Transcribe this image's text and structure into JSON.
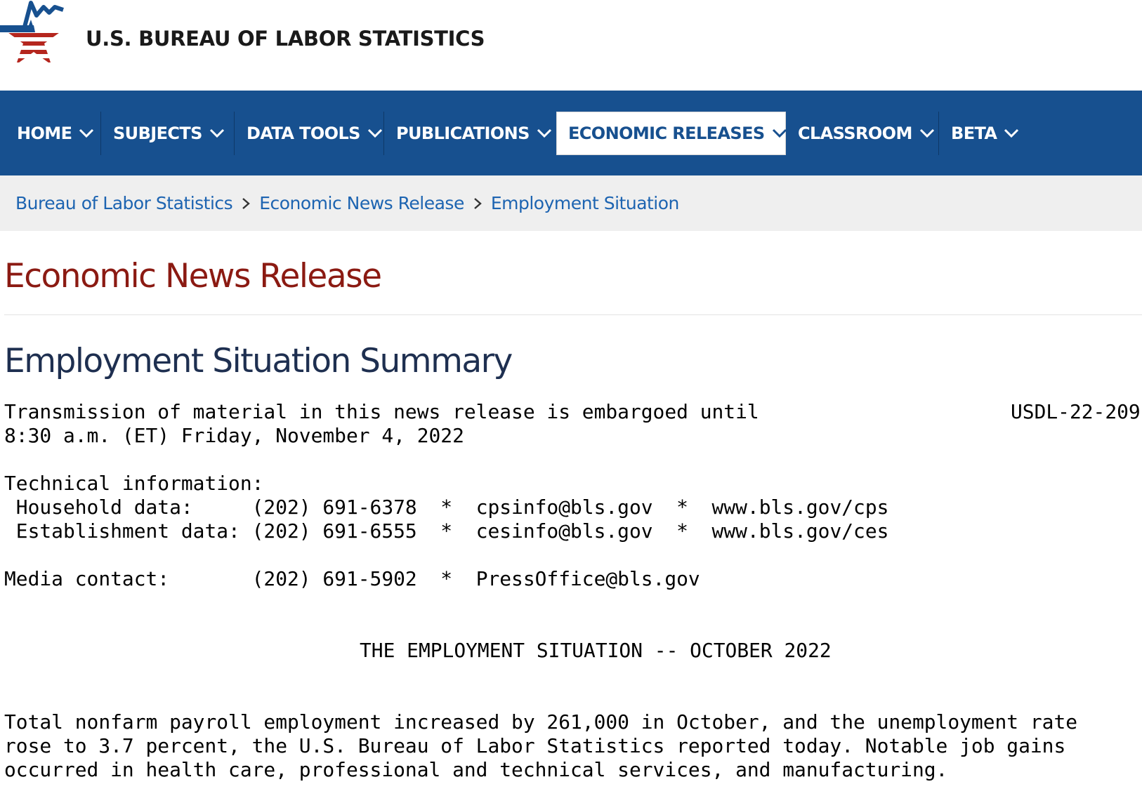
{
  "site": {
    "title": "U.S. BUREAU OF LABOR STATISTICS",
    "logo": "bls-star-logo",
    "colors": {
      "nav_bg": "#17508f",
      "logo_blue": "#17508f",
      "logo_red": "#b5261e",
      "page_title": "#8b1a12",
      "release_title": "#1e2f50",
      "link": "#1d64b1"
    }
  },
  "nav": {
    "items": [
      {
        "label": "HOME",
        "icon": "chevron-down-icon",
        "active": false
      },
      {
        "label": "SUBJECTS",
        "icon": "chevron-down-icon",
        "active": false
      },
      {
        "label": "DATA TOOLS",
        "icon": "chevron-down-icon",
        "active": false
      },
      {
        "label": "PUBLICATIONS",
        "icon": "chevron-down-icon",
        "active": false
      },
      {
        "label": "ECONOMIC RELEASES",
        "icon": "chevron-down-icon",
        "active": true
      },
      {
        "label": "CLASSROOM",
        "icon": "chevron-down-icon",
        "active": false
      },
      {
        "label": "BETA",
        "icon": "chevron-down-icon",
        "active": false
      }
    ]
  },
  "breadcrumb": {
    "items": [
      "Bureau of Labor Statistics",
      "Economic News Release",
      "Employment Situation"
    ],
    "separator_icon": "chevron-right-icon"
  },
  "page": {
    "title": "Economic News Release",
    "release_title": "Employment Situation Summary"
  },
  "release": {
    "embargo_line1": "Transmission of material in this news release is embargoed until",
    "release_id": "USDL-22-209",
    "embargo_line2": "8:30 a.m. (ET) Friday, November 4, 2022",
    "technical_info_label": "Technical information:",
    "contacts": [
      {
        "label": " Household data:     ",
        "phone": "(202) 691-6378",
        "email": "cpsinfo@bls.gov",
        "url": "www.bls.gov/cps"
      },
      {
        "label": " Establishment data: ",
        "phone": "(202) 691-6555",
        "email": "cesinfo@bls.gov",
        "url": "www.bls.gov/ces"
      }
    ],
    "media": {
      "label": "Media contact:       ",
      "phone": "(202) 691-5902",
      "email": "PressOffice@bls.gov"
    },
    "heading": "THE EMPLOYMENT SITUATION -- OCTOBER 2022",
    "summary_lines": [
      "Total nonfarm payroll employment increased by 261,000 in October, and the unemployment rate",
      "rose to 3.7 percent, the U.S. Bureau of Labor Statistics reported today. Notable job gains",
      "occurred in health care, professional and technical services, and manufacturing."
    ]
  }
}
